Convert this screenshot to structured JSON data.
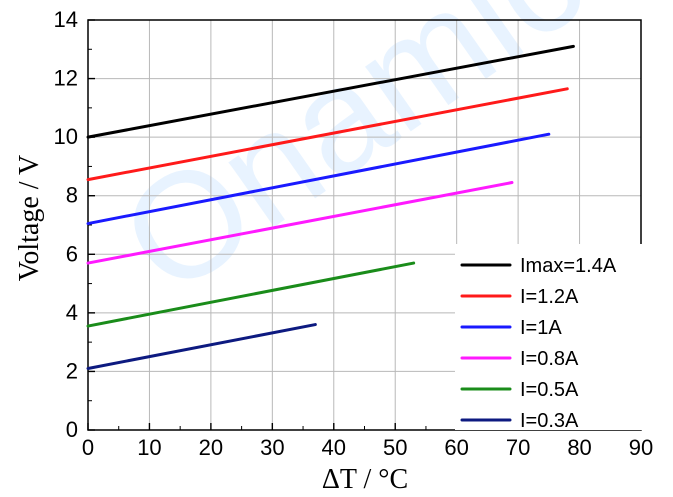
{
  "chart_data": {
    "type": "line",
    "title": "",
    "xlabel": "ΔT / °C",
    "ylabel": "Voltage / V",
    "xlim": [
      0,
      90
    ],
    "ylim": [
      0,
      14
    ],
    "x_ticks": [
      0,
      10,
      20,
      30,
      40,
      50,
      60,
      70,
      80,
      90
    ],
    "y_ticks": [
      0,
      2,
      4,
      6,
      8,
      10,
      12,
      14
    ],
    "grid": true,
    "legend_position": "bottom-right",
    "series": [
      {
        "name": "Imax=1.4A",
        "color": "#000000",
        "x": [
          0,
          79
        ],
        "y": [
          10.0,
          13.1
        ]
      },
      {
        "name": "I=1.2A",
        "color": "#ff1a1a",
        "x": [
          0,
          78
        ],
        "y": [
          8.55,
          11.65
        ]
      },
      {
        "name": "I=1A",
        "color": "#1a1aff",
        "x": [
          0,
          75
        ],
        "y": [
          7.05,
          10.1
        ]
      },
      {
        "name": "I=0.8A",
        "color": "#ff1aff",
        "x": [
          0,
          69
        ],
        "y": [
          5.7,
          8.45
        ]
      },
      {
        "name": "I=0.5A",
        "color": "#1a8c1a",
        "x": [
          0,
          53
        ],
        "y": [
          3.55,
          5.7
        ]
      },
      {
        "name": "I=0.3A",
        "color": "#0d1a80",
        "x": [
          0,
          37
        ],
        "y": [
          2.1,
          3.6
        ]
      }
    ]
  },
  "watermark": {
    "text": "Onamic",
    "color": "#d7ebff"
  }
}
